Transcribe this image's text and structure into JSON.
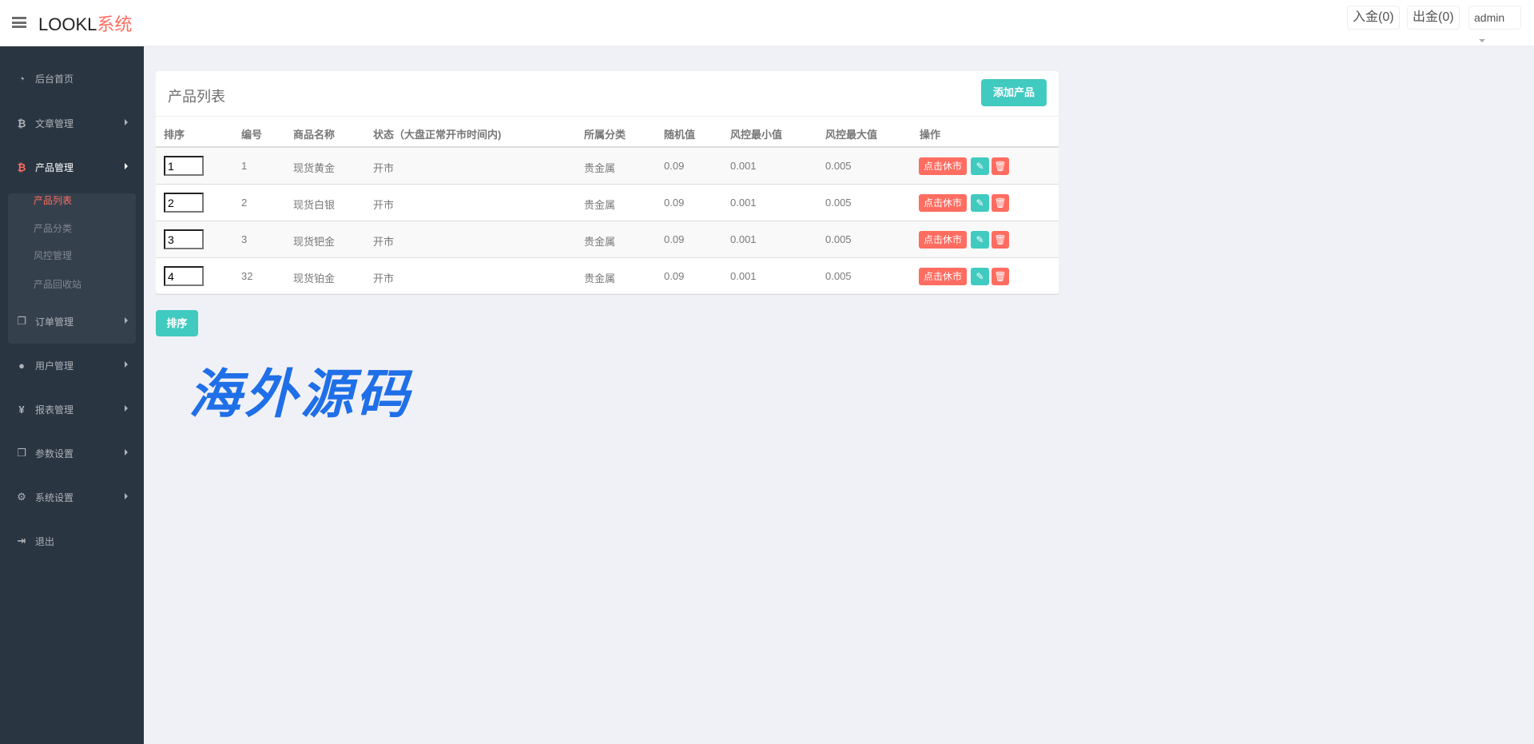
{
  "header": {
    "logo_main": "LOOKL",
    "logo_accent": "系统",
    "deposit": "入金(0)",
    "withdraw": "出金(0)",
    "user": "admin"
  },
  "sidebar": {
    "items": [
      {
        "label": "后台首页",
        "icon": "dashboard-icon"
      },
      {
        "label": "文章管理",
        "icon": "bitcoin-icon"
      },
      {
        "label": "产品管理",
        "icon": "bitcoin-icon"
      },
      {
        "label": "订单管理",
        "icon": "copy-icon"
      },
      {
        "label": "用户管理",
        "icon": "user-icon"
      },
      {
        "label": "报表管理",
        "icon": "yen-icon"
      },
      {
        "label": "参数设置",
        "icon": "copy-icon"
      },
      {
        "label": "系统设置",
        "icon": "gears-icon"
      },
      {
        "label": "退出",
        "icon": "sign-out-icon"
      }
    ],
    "subitems": [
      "产品列表",
      "产品分类",
      "风控管理",
      "产品回收站"
    ]
  },
  "panel": {
    "title": "产品列表",
    "add_button": "添加产品"
  },
  "table": {
    "columns": [
      "排序",
      "编号",
      "商品名称",
      "状态（大盘正常开市时间内)",
      "所属分类",
      "随机值",
      "风控最小值",
      "风控最大值",
      "操作"
    ],
    "rows": [
      {
        "sort": "1",
        "id": "1",
        "name": "现货黄金",
        "status": "开市",
        "category": "贵金属",
        "random": "0.09",
        "min": "0.001",
        "max": "0.005",
        "action": "点击休市"
      },
      {
        "sort": "2",
        "id": "2",
        "name": "现货白银",
        "status": "开市",
        "category": "贵金属",
        "random": "0.09",
        "min": "0.001",
        "max": "0.005",
        "action": "点击休市"
      },
      {
        "sort": "3",
        "id": "3",
        "name": "现货钯金",
        "status": "开市",
        "category": "贵金属",
        "random": "0.09",
        "min": "0.001",
        "max": "0.005",
        "action": "点击休市"
      },
      {
        "sort": "4",
        "id": "32",
        "name": "现货铂金",
        "status": "开市",
        "category": "贵金属",
        "random": "0.09",
        "min": "0.001",
        "max": "0.005",
        "action": "点击休市"
      }
    ]
  },
  "sort_button": "排序",
  "watermark": "海外源码",
  "colors": {
    "accent": "#41cac0",
    "danger": "#ff6c60",
    "sidebar": "#2a3542"
  }
}
